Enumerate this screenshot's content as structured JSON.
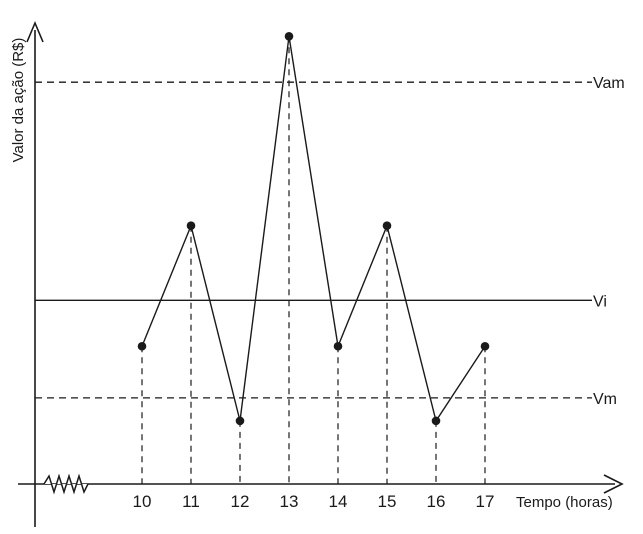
{
  "chart_data": {
    "type": "line",
    "title": "",
    "xlabel": "Tempo (horas)",
    "ylabel": "Valor da ação (R$)",
    "x": [
      10,
      11,
      12,
      13,
      14,
      15,
      16,
      17
    ],
    "values": [
      2.4,
      4.5,
      1.1,
      7.8,
      2.4,
      4.5,
      1.1,
      2.4
    ],
    "y_axis_scale": "none",
    "x_axis_break": "zigzag",
    "reference_lines": [
      {
        "label": "Vam",
        "value": 7.0,
        "style": "dashed"
      },
      {
        "label": "Vi",
        "value": 3.2,
        "style": "solid"
      },
      {
        "label": "Vm",
        "value": 1.5,
        "style": "dashed"
      }
    ],
    "drop_lines": "dashed",
    "markers": "filled-circle",
    "grid": false,
    "legend": "none",
    "colors": {
      "line": "#1a1a1a",
      "marker": "#1a1a1a",
      "background": "#ffffff"
    }
  }
}
